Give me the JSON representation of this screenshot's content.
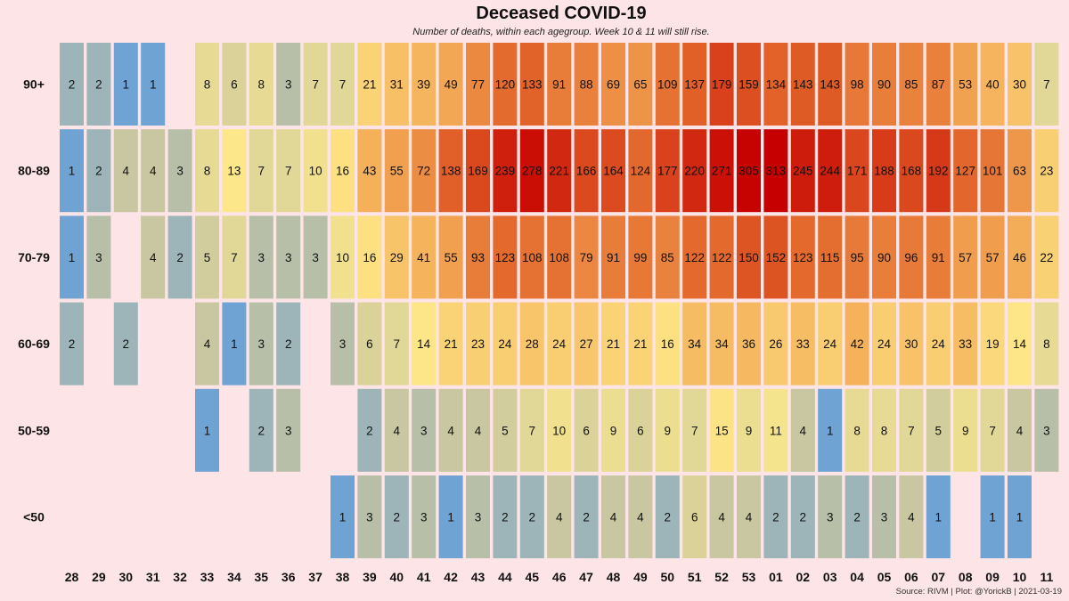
{
  "chart_data": {
    "type": "heatmap",
    "title": "Deceased COVID-19",
    "subtitle": "Number of deaths, within each agegroup. Week 10 & 11 will still rise.",
    "caption": "Source: RIVM | Plot: @YorickB |  2021-03-19",
    "weeks": [
      "28",
      "29",
      "30",
      "31",
      "32",
      "33",
      "34",
      "35",
      "36",
      "37",
      "38",
      "39",
      "40",
      "41",
      "42",
      "43",
      "44",
      "45",
      "46",
      "47",
      "48",
      "49",
      "50",
      "51",
      "52",
      "53",
      "01",
      "02",
      "03",
      "04",
      "05",
      "06",
      "07",
      "08",
      "09",
      "10",
      "11"
    ],
    "age_groups": [
      "90+",
      "80-89",
      "70-79",
      "60-69",
      "50-59",
      "<50"
    ],
    "values": [
      [
        2,
        2,
        1,
        1,
        null,
        8,
        6,
        8,
        3,
        7,
        7,
        21,
        31,
        39,
        49,
        77,
        120,
        133,
        91,
        88,
        69,
        65,
        109,
        137,
        179,
        159,
        134,
        143,
        143,
        98,
        90,
        85,
        87,
        53,
        40,
        30,
        7
      ],
      [
        1,
        2,
        4,
        4,
        3,
        8,
        13,
        7,
        7,
        10,
        16,
        43,
        55,
        72,
        138,
        169,
        239,
        278,
        221,
        166,
        164,
        124,
        177,
        220,
        271,
        305,
        313,
        245,
        244,
        171,
        188,
        168,
        192,
        127,
        101,
        63,
        23
      ],
      [
        1,
        3,
        null,
        4,
        2,
        5,
        7,
        3,
        3,
        3,
        10,
        16,
        29,
        41,
        55,
        93,
        123,
        108,
        108,
        79,
        91,
        99,
        85,
        122,
        122,
        150,
        152,
        123,
        115,
        95,
        90,
        96,
        91,
        57,
        57,
        46,
        22
      ],
      [
        2,
        null,
        2,
        null,
        null,
        4,
        1,
        3,
        2,
        null,
        3,
        6,
        7,
        14,
        21,
        23,
        24,
        28,
        24,
        27,
        21,
        21,
        16,
        34,
        34,
        36,
        26,
        33,
        24,
        42,
        24,
        30,
        24,
        33,
        19,
        14,
        8
      ],
      [
        null,
        null,
        null,
        null,
        null,
        1,
        null,
        2,
        3,
        null,
        null,
        2,
        4,
        3,
        4,
        4,
        5,
        7,
        10,
        6,
        9,
        6,
        9,
        7,
        15,
        9,
        11,
        4,
        1,
        8,
        8,
        7,
        5,
        9,
        7,
        4,
        3
      ],
      [
        null,
        null,
        null,
        null,
        null,
        null,
        null,
        null,
        null,
        null,
        1,
        3,
        2,
        3,
        1,
        3,
        2,
        2,
        4,
        2,
        4,
        4,
        2,
        6,
        4,
        4,
        2,
        2,
        3,
        2,
        3,
        4,
        1,
        null,
        1,
        1,
        null
      ]
    ],
    "color_scale": [
      "#6fa3d4",
      "#c3c3a3",
      "#fde98a",
      "#f5b25b",
      "#e2642a",
      "#c60000"
    ]
  }
}
